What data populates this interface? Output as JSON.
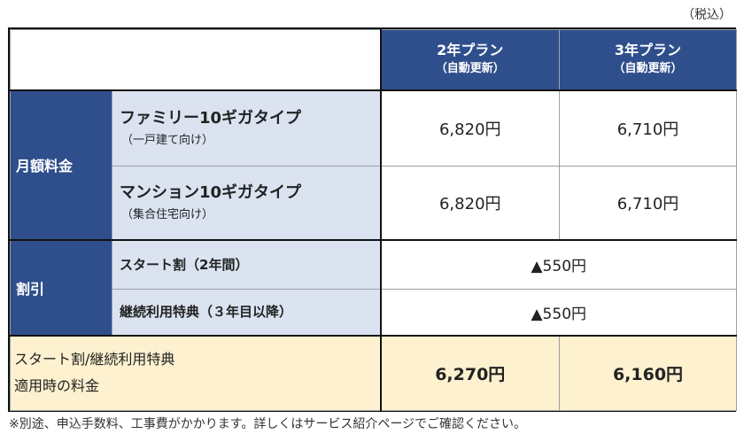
{
  "tax_note": "（税込）",
  "plans": [
    {
      "name": "2年プラン",
      "sub": "（自動更新）"
    },
    {
      "name": "3年プラン",
      "sub": "（自動更新）"
    }
  ],
  "monthly": {
    "category": "月額料金",
    "rows": [
      {
        "name": "ファミリー10ギガタイプ",
        "note": "（一戸建て向け）",
        "prices": [
          "6,820円",
          "6,710円"
        ]
      },
      {
        "name": "マンション10ギガタイプ",
        "note": "（集合住宅向け）",
        "prices": [
          "6,820円",
          "6,710円"
        ]
      }
    ]
  },
  "discount": {
    "category": "割引",
    "rows": [
      {
        "name": "スタート割（2年間）",
        "value": "▲550円"
      },
      {
        "name": "継続利用特典（３年目以降）",
        "value": "▲550円"
      }
    ]
  },
  "total": {
    "label_line1": "スタート割/継続利用特典",
    "label_line2": "適用時の料金",
    "prices": [
      "6,270円",
      "6,160円"
    ]
  },
  "footnote": "※別途、申込手数料、工事費がかかります。詳しくはサービス紹介ページでご確認ください。"
}
